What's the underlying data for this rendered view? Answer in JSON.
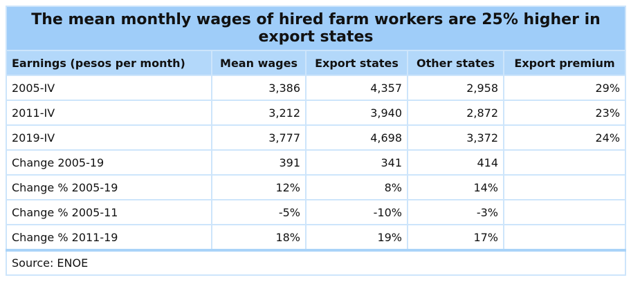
{
  "title": "The mean monthly wages of hired farm workers are 25% higher in export states",
  "table": {
    "header": [
      "Earnings (pesos per month)",
      "Mean wages",
      "Export states",
      "Other states",
      "Export premium"
    ],
    "rows": [
      [
        "2005-IV",
        "3,386",
        "4,357",
        "2,958",
        "29%"
      ],
      [
        "2011-IV",
        "3,212",
        "3,940",
        "2,872",
        "23%"
      ],
      [
        "2019-IV",
        "3,777",
        "4,698",
        "3,372",
        "24%"
      ],
      [
        "Change 2005-19",
        "391",
        "341",
        "414"
      ],
      [
        "Change % 2005-19",
        "12%",
        "8%",
        "14%"
      ],
      [
        "Change % 2005-11",
        "-5%",
        "-10%",
        "-3%"
      ],
      [
        "Change % 2011-19",
        "18%",
        "19%",
        "17%"
      ]
    ]
  },
  "source": "Source: ENOE"
}
